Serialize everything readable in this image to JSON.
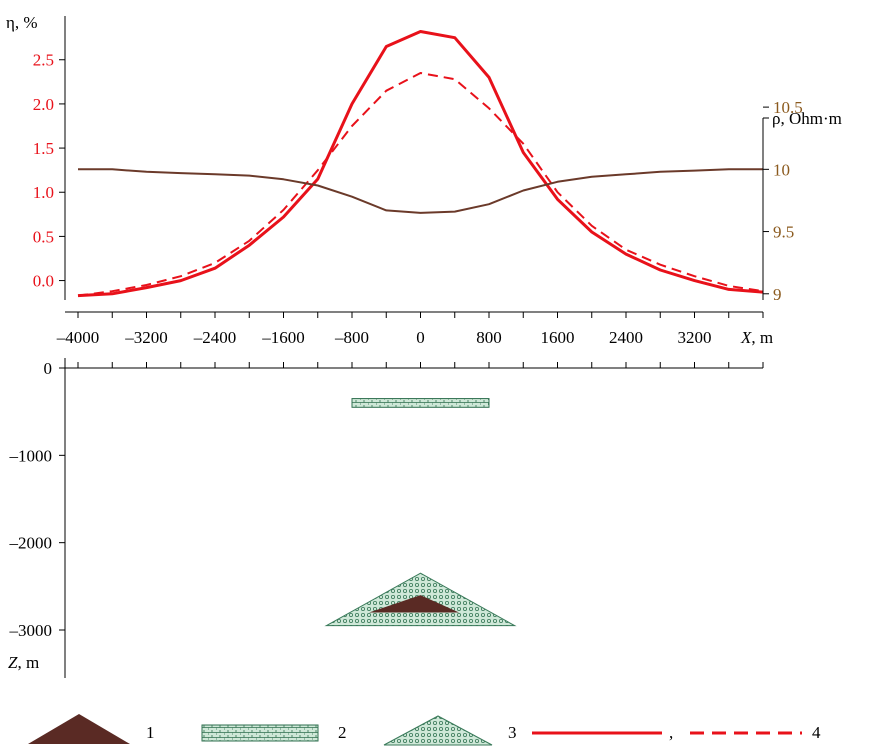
{
  "colors": {
    "eta": "#e8111a",
    "rho": "#6b3a2a",
    "rho_tick": "#8b5a1e",
    "axis": "#000000",
    "dark_body": "#5a2a24",
    "green_fill": "#cfe8d8",
    "green_pattern": "#3a7a5a"
  },
  "chart_data": [
    {
      "type": "line",
      "x": [
        -4000,
        -3600,
        -3200,
        -2800,
        -2400,
        -2000,
        -1600,
        -1200,
        -800,
        -400,
        0,
        400,
        800,
        1200,
        1600,
        2000,
        2400,
        2800,
        3200,
        3600,
        4000
      ],
      "series": [
        {
          "axis": "left",
          "style": "solid",
          "color": "#e8111a",
          "values": [
            -0.17,
            -0.15,
            -0.08,
            0.0,
            0.14,
            0.4,
            0.72,
            1.15,
            2.0,
            2.65,
            2.82,
            2.75,
            2.3,
            1.45,
            0.92,
            0.55,
            0.3,
            0.12,
            0.0,
            -0.1,
            -0.13
          ]
        },
        {
          "axis": "left",
          "style": "dashed",
          "color": "#e8111a",
          "values": [
            -0.17,
            -0.12,
            -0.05,
            0.05,
            0.2,
            0.45,
            0.8,
            1.25,
            1.75,
            2.15,
            2.35,
            2.28,
            1.95,
            1.55,
            1.0,
            0.62,
            0.35,
            0.18,
            0.05,
            -0.06,
            -0.12
          ]
        },
        {
          "axis": "right",
          "style": "solid",
          "color": "#6b3a2a",
          "values": [
            10.0,
            10.0,
            9.98,
            9.97,
            9.96,
            9.95,
            9.92,
            9.87,
            9.78,
            9.67,
            9.65,
            9.66,
            9.72,
            9.83,
            9.9,
            9.94,
            9.96,
            9.98,
            9.99,
            10.0,
            10.0
          ]
        }
      ],
      "left_axis": {
        "label": "η, %",
        "ticks": [
          "0.0",
          "0.5",
          "1.0",
          "1.5",
          "2.0",
          "2.5"
        ],
        "tick_values": [
          0.0,
          0.5,
          1.0,
          1.5,
          2.0,
          2.5
        ],
        "ylim": [
          -0.22,
          2.95
        ]
      },
      "right_axis": {
        "label": "ρ, Ohm·m",
        "ticks": [
          "9",
          "9.5",
          "10",
          "10.5"
        ],
        "tick_values": [
          9,
          9.5,
          10,
          10.5
        ],
        "ylim": [
          8.95,
          11.2
        ]
      },
      "x_axis": {
        "label_italic": "X",
        "label_rest": ", m",
        "ticks": [
          "–4000",
          "–3200",
          "–2400",
          "–1600",
          "–800",
          "0",
          "800",
          "1600",
          "2400",
          "3200"
        ],
        "tick_values": [
          -4000,
          -3200,
          -2400,
          -1600,
          -800,
          0,
          800,
          1600,
          2400,
          3200
        ],
        "xlim": [
          -4000,
          4000
        ]
      }
    },
    {
      "type": "diagram",
      "z_axis": {
        "label_italic": "Z",
        "label_rest": ", m",
        "ticks": [
          "0",
          "–1000",
          "–2000",
          "–3000"
        ],
        "tick_values": [
          0,
          -1000,
          -2000,
          -3000
        ],
        "zlim": [
          -3500,
          0
        ]
      },
      "bodies": [
        {
          "kind": "layer",
          "legend": "2",
          "x": [
            -800,
            800
          ],
          "z": [
            -350,
            -450
          ]
        },
        {
          "kind": "triangle",
          "legend": "3",
          "x": [
            -1100,
            1100
          ],
          "apex_x": 0,
          "z_base": -2950,
          "z_apex": -2350
        },
        {
          "kind": "triangle",
          "legend": "1",
          "x": [
            -600,
            450
          ],
          "apex_x": 0,
          "z_base": -2800,
          "z_apex": -2600
        }
      ]
    }
  ],
  "legend": [
    {
      "symbol": "dark-triangle",
      "label": "1"
    },
    {
      "symbol": "layer",
      "label": "2"
    },
    {
      "symbol": "patterned-triangle",
      "label": "3"
    },
    {
      "symbol": "solid-line",
      "label": ","
    },
    {
      "symbol": "dashed-line",
      "label": "4"
    }
  ]
}
